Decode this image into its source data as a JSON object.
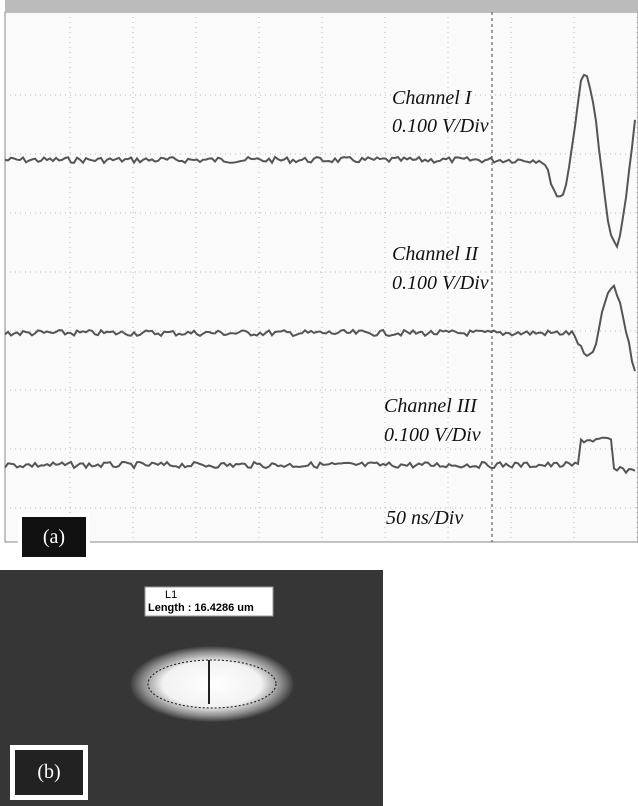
{
  "panel_a": {
    "label": "(a)",
    "channels": [
      {
        "name": "Channel I",
        "scale": "0.100 V/Div"
      },
      {
        "name": "Channel II",
        "scale": "0.100 V/Div"
      },
      {
        "name": "Channel III",
        "scale": "0.100 V/Div"
      }
    ],
    "timebase": "50 ns/Div"
  },
  "panel_b": {
    "label": "(b)",
    "measurement": {
      "name": "L1",
      "length": "Length : 16.4286 um"
    }
  }
}
